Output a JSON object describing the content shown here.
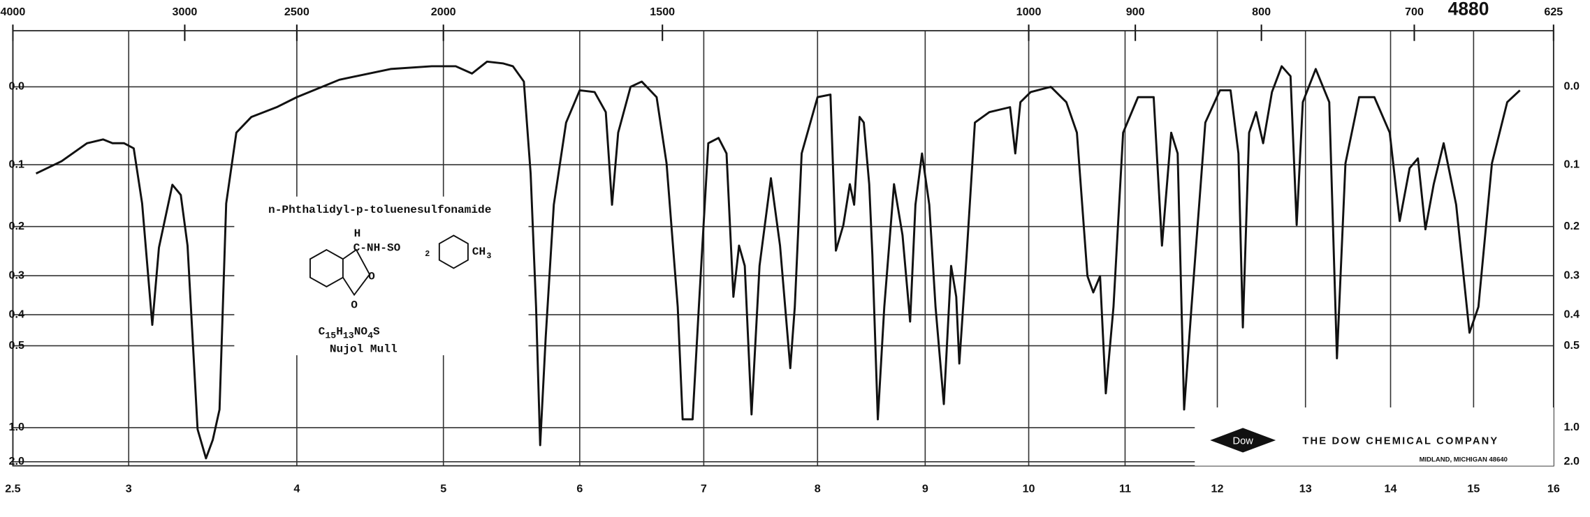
{
  "chart_data": {
    "type": "line",
    "spectrum_number": "4880",
    "compound": "n-Phthalidyl-p-toluenesulfonamide",
    "formula_parts": [
      "C",
      "15",
      "H",
      "13",
      "NO",
      "4",
      "S"
    ],
    "structure_labels": [
      "H",
      "C-NH-SO",
      "2",
      "CH",
      "3",
      "O",
      "O"
    ],
    "medium": "Nujol Mull",
    "company": "THE DOW CHEMICAL COMPANY",
    "company_location": "MIDLAND, MICHIGAN 48640",
    "logo": "Dow",
    "color": "#111111",
    "y_scale": "transmittance",
    "grid": true,
    "xlim": [
      2.5,
      16
    ],
    "xticks": [
      2.5,
      3,
      4,
      5,
      6,
      7,
      8,
      9,
      10,
      11,
      12,
      13,
      14,
      15,
      16
    ],
    "x2ticks": [
      4000,
      3000,
      2500,
      2000,
      1500,
      1000,
      900,
      800,
      700,
      625
    ],
    "ylim": [
      -0.06,
      2.0
    ],
    "yticks": [
      {
        "value": 0,
        "label": "0.0"
      },
      0.1,
      0.2,
      0.3,
      0.4,
      0.5,
      {
        "value": 1,
        "label": "1.0"
      },
      {
        "value": 2,
        "label": "2.0"
      }
    ],
    "x": [
      2.6,
      2.71,
      2.82,
      2.89,
      2.93,
      2.98,
      3.03,
      3.08,
      3.14,
      3.18,
      3.26,
      3.31,
      3.35,
      3.41,
      3.46,
      3.5,
      3.54,
      3.58,
      3.64,
      3.73,
      3.88,
      4.0,
      4.29,
      4.64,
      4.92,
      5.09,
      5.21,
      5.32,
      5.44,
      5.51,
      5.59,
      5.64,
      5.68,
      5.71,
      5.75,
      5.81,
      5.9,
      6.0,
      6.12,
      6.21,
      6.26,
      6.31,
      6.41,
      6.5,
      6.62,
      6.7,
      6.79,
      6.83,
      6.91,
      6.96,
      7.04,
      7.13,
      7.2,
      7.26,
      7.31,
      7.36,
      7.42,
      7.49,
      7.59,
      7.67,
      7.76,
      7.8,
      7.86,
      8.0,
      8.12,
      8.17,
      8.24,
      8.3,
      8.34,
      8.39,
      8.43,
      8.48,
      8.51,
      8.56,
      8.62,
      8.71,
      8.79,
      8.86,
      8.91,
      8.97,
      9.04,
      9.1,
      9.18,
      9.25,
      9.3,
      9.33,
      9.4,
      9.48,
      9.62,
      9.82,
      9.87,
      9.92,
      10.02,
      10.23,
      10.39,
      10.5,
      10.61,
      10.67,
      10.74,
      10.8,
      10.88,
      10.98,
      11.14,
      11.31,
      11.4,
      11.5,
      11.57,
      11.64,
      11.72,
      11.87,
      12.03,
      12.15,
      12.24,
      12.29,
      12.36,
      12.44,
      12.52,
      12.62,
      12.73,
      12.83,
      12.9,
      12.97,
      13.12,
      13.28,
      13.37,
      13.47,
      13.63,
      13.81,
      13.99,
      14.11,
      14.23,
      14.33,
      14.42,
      14.52,
      14.64,
      14.79,
      14.95,
      15.06,
      15.23,
      15.42,
      15.58
    ],
    "values": [
      0.113,
      0.095,
      0.07,
      0.065,
      0.07,
      0.07,
      0.077,
      0.16,
      0.43,
      0.24,
      0.13,
      0.146,
      0.236,
      1.02,
      1.72,
      1.17,
      0.83,
      0.16,
      0.056,
      0.036,
      0.024,
      0.012,
      -0.008,
      -0.02,
      -0.023,
      -0.023,
      -0.015,
      -0.028,
      -0.026,
      -0.023,
      -0.006,
      0.113,
      0.378,
      1.27,
      0.47,
      0.162,
      0.043,
      0.004,
      0.006,
      0.03,
      0.162,
      0.056,
      0.0,
      -0.006,
      0.012,
      0.098,
      0.378,
      0.914,
      0.914,
      0.378,
      0.07,
      0.063,
      0.084,
      0.351,
      0.236,
      0.278,
      0.87,
      0.278,
      0.12,
      0.236,
      0.59,
      0.378,
      0.084,
      0.012,
      0.009,
      0.246,
      0.197,
      0.129,
      0.162,
      0.036,
      0.043,
      0.129,
      0.256,
      0.914,
      0.378,
      0.129,
      0.216,
      0.42,
      0.162,
      0.084,
      0.162,
      0.378,
      0.79,
      0.278,
      0.351,
      0.57,
      0.256,
      0.043,
      0.03,
      0.024,
      0.084,
      0.018,
      0.006,
      0.0,
      0.018,
      0.056,
      0.301,
      0.34,
      0.301,
      0.72,
      0.378,
      0.056,
      0.012,
      0.012,
      0.236,
      0.056,
      0.084,
      0.83,
      0.378,
      0.043,
      0.004,
      0.004,
      0.084,
      0.438,
      0.056,
      0.03,
      0.07,
      0.006,
      -0.023,
      -0.012,
      0.197,
      0.018,
      -0.02,
      0.018,
      0.548,
      0.098,
      0.012,
      0.012,
      0.056,
      0.19,
      0.105,
      0.091,
      0.205,
      0.129,
      0.07,
      0.162,
      0.455,
      0.378,
      0.098,
      0.018,
      0.004
    ]
  }
}
